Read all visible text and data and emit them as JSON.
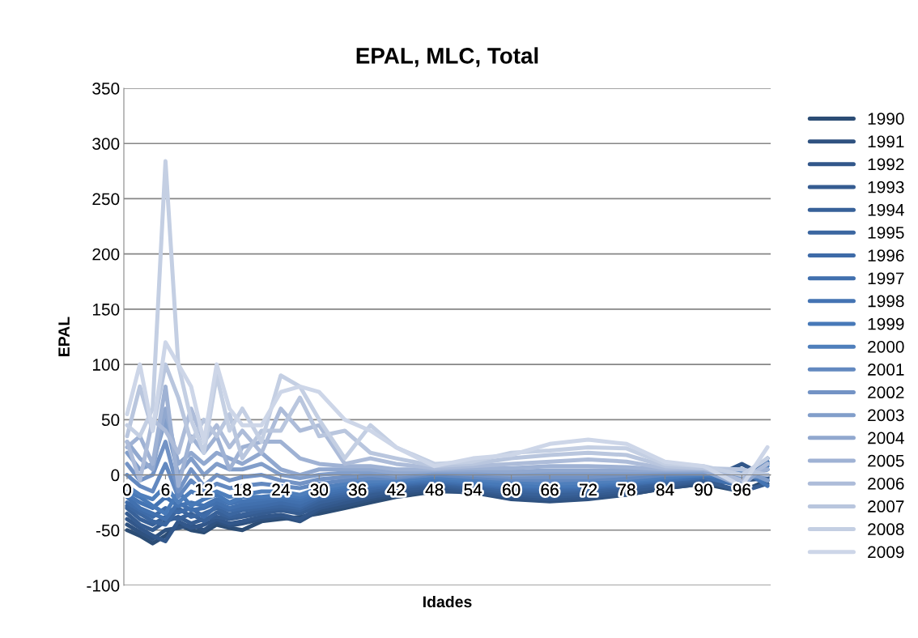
{
  "chart_data": {
    "type": "line",
    "title": "EPAL, MLC, Total",
    "xlabel": "Idades",
    "ylabel": "EPAL",
    "xlim": [
      -0.5,
      100.5
    ],
    "xticks": [
      0,
      6,
      12,
      18,
      24,
      30,
      36,
      42,
      48,
      54,
      60,
      66,
      72,
      78,
      84,
      90,
      96
    ],
    "ylim": [
      -100,
      350
    ],
    "yticks": [
      -100,
      -50,
      0,
      50,
      100,
      150,
      200,
      250,
      300,
      350
    ],
    "grid": "y",
    "legend": "right",
    "marker": "none",
    "line_style": "solid",
    "x": [
      0,
      2,
      4,
      6,
      8,
      10,
      12,
      14,
      16,
      18,
      21,
      24,
      27,
      30,
      34,
      38,
      42,
      48,
      54,
      60,
      66,
      72,
      78,
      84,
      90,
      96,
      100
    ],
    "series": [
      {
        "name": "1990",
        "color": "#2c4d75",
        "values": [
          -50,
          -55,
          -62,
          -55,
          -45,
          -50,
          -52,
          -45,
          -48,
          -50,
          -42,
          -40,
          -38,
          -35,
          -30,
          -25,
          -20,
          -15,
          -15,
          -20,
          -22,
          -20,
          -18,
          -12,
          -8,
          -15,
          -5
        ]
      },
      {
        "name": "1991",
        "color": "#2f5280",
        "values": [
          -45,
          -52,
          -58,
          -50,
          -48,
          -45,
          -50,
          -42,
          -46,
          -44,
          -40,
          -38,
          -42,
          -32,
          -28,
          -22,
          -18,
          -14,
          -16,
          -22,
          -24,
          -22,
          -18,
          -12,
          -8,
          -5,
          -3
        ]
      },
      {
        "name": "1992",
        "color": "#32578a",
        "values": [
          -40,
          -48,
          -55,
          -60,
          -42,
          -48,
          -45,
          -40,
          -44,
          -42,
          -38,
          -36,
          -40,
          -30,
          -25,
          -20,
          -16,
          -12,
          -15,
          -20,
          -22,
          -20,
          -16,
          -10,
          -6,
          10,
          -2
        ]
      },
      {
        "name": "1993",
        "color": "#355c91",
        "values": [
          -35,
          -45,
          -50,
          -42,
          -38,
          -44,
          -40,
          -38,
          -40,
          -38,
          -35,
          -32,
          -35,
          -28,
          -22,
          -18,
          -14,
          -10,
          -13,
          -18,
          -20,
          -18,
          -14,
          -10,
          -5,
          -15,
          -8
        ]
      },
      {
        "name": "1994",
        "color": "#386199",
        "values": [
          -30,
          -40,
          -45,
          -38,
          -40,
          -35,
          -42,
          -34,
          -38,
          -36,
          -32,
          -30,
          -32,
          -25,
          -20,
          -15,
          -12,
          -8,
          -12,
          -16,
          -18,
          -16,
          -12,
          -8,
          -4,
          -5,
          10
        ]
      },
      {
        "name": "1995",
        "color": "#3b66a0",
        "values": [
          -28,
          -35,
          -42,
          -45,
          -30,
          -38,
          -35,
          -30,
          -36,
          -32,
          -30,
          -28,
          -30,
          -22,
          -18,
          -14,
          -10,
          -7,
          -10,
          -14,
          -15,
          -14,
          -10,
          -6,
          -3,
          -8,
          15
        ]
      },
      {
        "name": "1996",
        "color": "#3e6ba8",
        "values": [
          -25,
          -32,
          -38,
          -30,
          -34,
          -30,
          -38,
          -28,
          -32,
          -30,
          -28,
          -25,
          -28,
          -20,
          -16,
          -12,
          -9,
          -6,
          -9,
          -12,
          -14,
          -12,
          -9,
          -5,
          -2,
          0,
          5
        ]
      },
      {
        "name": "1997",
        "color": "#4170ae",
        "values": [
          -20,
          -30,
          -35,
          -40,
          -25,
          -32,
          -30,
          -25,
          -30,
          -27,
          -25,
          -22,
          -25,
          -18,
          -14,
          -10,
          -8,
          -5,
          -8,
          -11,
          -12,
          -11,
          -8,
          -5,
          -2,
          -10,
          12
        ]
      },
      {
        "name": "1998",
        "color": "#4474b3",
        "values": [
          -18,
          -25,
          -30,
          -20,
          -28,
          -25,
          -28,
          -22,
          -26,
          -24,
          -22,
          -20,
          -22,
          -16,
          -12,
          -9,
          -7,
          -4,
          -7,
          -10,
          -11,
          -10,
          -7,
          -4,
          -1,
          5,
          -10
        ]
      },
      {
        "name": "1999",
        "color": "#4779b8",
        "values": [
          -15,
          -20,
          -28,
          -35,
          -15,
          -28,
          -22,
          -18,
          -25,
          -20,
          -20,
          -18,
          -20,
          -14,
          -10,
          -8,
          -6,
          -3,
          -6,
          -9,
          -10,
          -9,
          -6,
          -3,
          0,
          -5,
          8
        ]
      },
      {
        "name": "2000",
        "color": "#4f7fbc",
        "values": [
          -10,
          -18,
          -22,
          -10,
          -25,
          -15,
          -20,
          -15,
          -20,
          -18,
          -15,
          -15,
          -18,
          -12,
          -8,
          -6,
          -5,
          -2,
          -4,
          -6,
          -8,
          -7,
          -5,
          -2,
          0,
          2,
          -5
        ]
      },
      {
        "name": "2001",
        "color": "#6389c0",
        "values": [
          0,
          -10,
          -15,
          10,
          -20,
          -5,
          -15,
          -8,
          -12,
          -10,
          -8,
          -10,
          -12,
          -8,
          -5,
          -3,
          -3,
          0,
          -2,
          -4,
          -5,
          -4,
          -3,
          0,
          1,
          0,
          5
        ]
      },
      {
        "name": "2002",
        "color": "#7393c5",
        "values": [
          10,
          -5,
          0,
          30,
          -15,
          5,
          -10,
          0,
          -5,
          -2,
          0,
          -5,
          -8,
          -4,
          -2,
          0,
          -2,
          2,
          0,
          -2,
          -2,
          -2,
          0,
          2,
          2,
          -3,
          0
        ]
      },
      {
        "name": "2003",
        "color": "#829eca",
        "values": [
          20,
          5,
          10,
          50,
          0,
          15,
          0,
          10,
          5,
          5,
          10,
          0,
          -3,
          0,
          2,
          3,
          0,
          3,
          2,
          0,
          1,
          1,
          2,
          3,
          3,
          5,
          -5
        ]
      },
      {
        "name": "2004",
        "color": "#91a8cf",
        "values": [
          30,
          15,
          5,
          60,
          10,
          20,
          10,
          20,
          15,
          10,
          20,
          5,
          0,
          5,
          5,
          5,
          2,
          4,
          4,
          3,
          4,
          4,
          4,
          4,
          4,
          -10,
          10
        ]
      },
      {
        "name": "2005",
        "color": "#9fb2d4",
        "values": [
          25,
          35,
          10,
          80,
          -10,
          35,
          20,
          35,
          5,
          25,
          30,
          30,
          15,
          10,
          8,
          8,
          5,
          5,
          6,
          6,
          8,
          8,
          7,
          5,
          5,
          0,
          5
        ]
      },
      {
        "name": "2006",
        "color": "#adbcd9",
        "values": [
          30,
          -5,
          50,
          40,
          20,
          60,
          30,
          45,
          25,
          40,
          20,
          60,
          40,
          45,
          10,
          15,
          10,
          6,
          8,
          10,
          12,
          14,
          12,
          6,
          6,
          -5,
          10
        ]
      },
      {
        "name": "2007",
        "color": "#b9c6de",
        "values": [
          35,
          80,
          40,
          100,
          70,
          30,
          50,
          35,
          55,
          15,
          40,
          40,
          70,
          35,
          40,
          20,
          15,
          8,
          10,
          15,
          18,
          20,
          18,
          8,
          6,
          5,
          0
        ]
      },
      {
        "name": "2008",
        "color": "#c4cfe3",
        "values": [
          45,
          35,
          60,
          284,
          100,
          50,
          20,
          90,
          40,
          60,
          30,
          90,
          80,
          50,
          15,
          45,
          25,
          10,
          12,
          20,
          22,
          25,
          24,
          10,
          8,
          0,
          15
        ]
      },
      {
        "name": "2009",
        "color": "#cdd6e8",
        "values": [
          55,
          100,
          40,
          120,
          100,
          80,
          30,
          100,
          60,
          45,
          45,
          75,
          80,
          75,
          50,
          40,
          25,
          8,
          15,
          18,
          28,
          32,
          28,
          12,
          8,
          -10,
          25
        ]
      }
    ]
  }
}
